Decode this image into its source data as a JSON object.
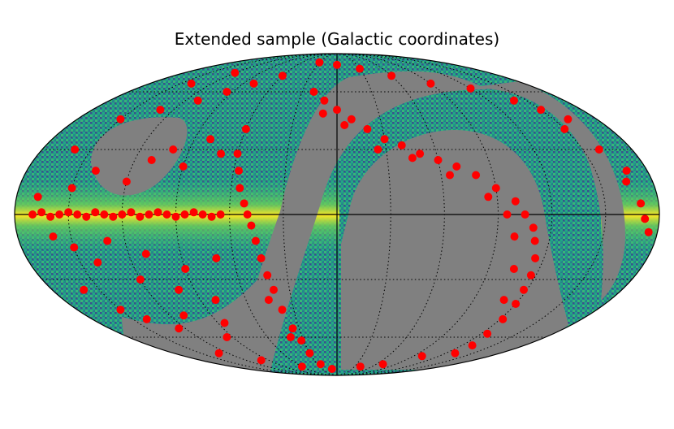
{
  "chart_data": {
    "type": "scatter",
    "projection": "mollweide",
    "coordinate_system": "galactic",
    "title": "Extended sample (Galactic coordinates)",
    "grid": true,
    "grid_style": "dotted",
    "meridian_step_deg": 30,
    "parallel_step_deg": 30,
    "axes_drawn": [
      "equator",
      "central-meridian"
    ],
    "background_map": {
      "colormap": "viridis",
      "masked_color": "#808080",
      "description_regions": [
        "high-density galactic plane band (yellow)",
        "masked footprint regions (grey)"
      ]
    },
    "marker_color": "#ff0000",
    "x_label": "",
    "y_label": "",
    "points_note": "Red points = source positions (galactic lon, lat in degrees, longitude increasing to the left)",
    "points": [
      [
        170,
        0
      ],
      [
        165,
        1
      ],
      [
        160,
        -1
      ],
      [
        155,
        0
      ],
      [
        150,
        1
      ],
      [
        145,
        0
      ],
      [
        140,
        -1
      ],
      [
        135,
        1
      ],
      [
        130,
        0
      ],
      [
        125,
        -1
      ],
      [
        120,
        0
      ],
      [
        115,
        1
      ],
      [
        110,
        -1
      ],
      [
        105,
        0
      ],
      [
        100,
        1
      ],
      [
        95,
        0
      ],
      [
        90,
        -1
      ],
      [
        85,
        0
      ],
      [
        80,
        1
      ],
      [
        75,
        0
      ],
      [
        70,
        -1
      ],
      [
        65,
        0
      ],
      [
        168,
        8
      ],
      [
        150,
        12
      ],
      [
        140,
        20
      ],
      [
        120,
        15
      ],
      [
        110,
        25
      ],
      [
        100,
        30
      ],
      [
        90,
        22
      ],
      [
        80,
        35
      ],
      [
        70,
        28
      ],
      [
        60,
        40
      ],
      [
        160,
        30
      ],
      [
        150,
        45
      ],
      [
        130,
        50
      ],
      [
        110,
        55
      ],
      [
        95,
        60
      ],
      [
        80,
        65
      ],
      [
        60,
        70
      ],
      [
        140,
        65
      ],
      [
        120,
        72
      ],
      [
        160,
        -10
      ],
      [
        150,
        -15
      ],
      [
        140,
        -22
      ],
      [
        130,
        -12
      ],
      [
        120,
        -30
      ],
      [
        110,
        -18
      ],
      [
        100,
        -35
      ],
      [
        90,
        -25
      ],
      [
        80,
        -40
      ],
      [
        70,
        -20
      ],
      [
        160,
        -35
      ],
      [
        150,
        -45
      ],
      [
        140,
        -50
      ],
      [
        125,
        -55
      ],
      [
        110,
        -48
      ],
      [
        95,
        -60
      ],
      [
        85,
        -52
      ],
      [
        130,
        -70
      ],
      [
        100,
        -75
      ],
      [
        52,
        5
      ],
      [
        50,
        0
      ],
      [
        48,
        -5
      ],
      [
        46,
        -12
      ],
      [
        44,
        -20
      ],
      [
        42,
        -28
      ],
      [
        40,
        -35
      ],
      [
        38,
        -45
      ],
      [
        35,
        -55
      ],
      [
        32,
        -62
      ],
      [
        30,
        -70
      ],
      [
        25,
        -78
      ],
      [
        55,
        12
      ],
      [
        57,
        20
      ],
      [
        60,
        28
      ],
      [
        45,
        -40
      ],
      [
        40,
        -60
      ],
      [
        20,
        60
      ],
      [
        10,
        55
      ],
      [
        0,
        50
      ],
      [
        -10,
        45
      ],
      [
        -20,
        40
      ],
      [
        -30,
        35
      ],
      [
        -40,
        32
      ],
      [
        -50,
        28
      ],
      [
        -60,
        25
      ],
      [
        -70,
        22
      ],
      [
        -80,
        18
      ],
      [
        -90,
        12
      ],
      [
        -100,
        6
      ],
      [
        -105,
        0
      ],
      [
        -110,
        -6
      ],
      [
        -112,
        -12
      ],
      [
        -115,
        -20
      ],
      [
        -117,
        -28
      ],
      [
        -118,
        -35
      ],
      [
        -120,
        -42
      ],
      [
        -122,
        -50
      ],
      [
        -125,
        -58
      ],
      [
        -130,
        -65
      ],
      [
        10,
        48
      ],
      [
        -5,
        42
      ],
      [
        -25,
        30
      ],
      [
        -45,
        26
      ],
      [
        -65,
        18
      ],
      [
        -85,
        8
      ],
      [
        -95,
        0
      ],
      [
        -100,
        -10
      ],
      [
        -105,
        -25
      ],
      [
        -110,
        -40
      ],
      [
        30,
        80
      ],
      [
        0,
        78
      ],
      [
        -30,
        75
      ],
      [
        -60,
        70
      ],
      [
        -90,
        65
      ],
      [
        -120,
        62
      ],
      [
        -140,
        55
      ],
      [
        -150,
        40
      ],
      [
        -160,
        30
      ],
      [
        -165,
        15
      ],
      [
        -170,
        5
      ],
      [
        -172,
        -2
      ],
      [
        -175,
        -8
      ],
      [
        -168,
        20
      ],
      [
        -160,
        45
      ],
      [
        -150,
        50
      ],
      [
        -40,
        -80
      ],
      [
        -70,
        -78
      ],
      [
        -100,
        -72
      ],
      [
        -130,
        -70
      ],
      [
        10,
        -82
      ],
      [
        60,
        -80
      ]
    ]
  }
}
